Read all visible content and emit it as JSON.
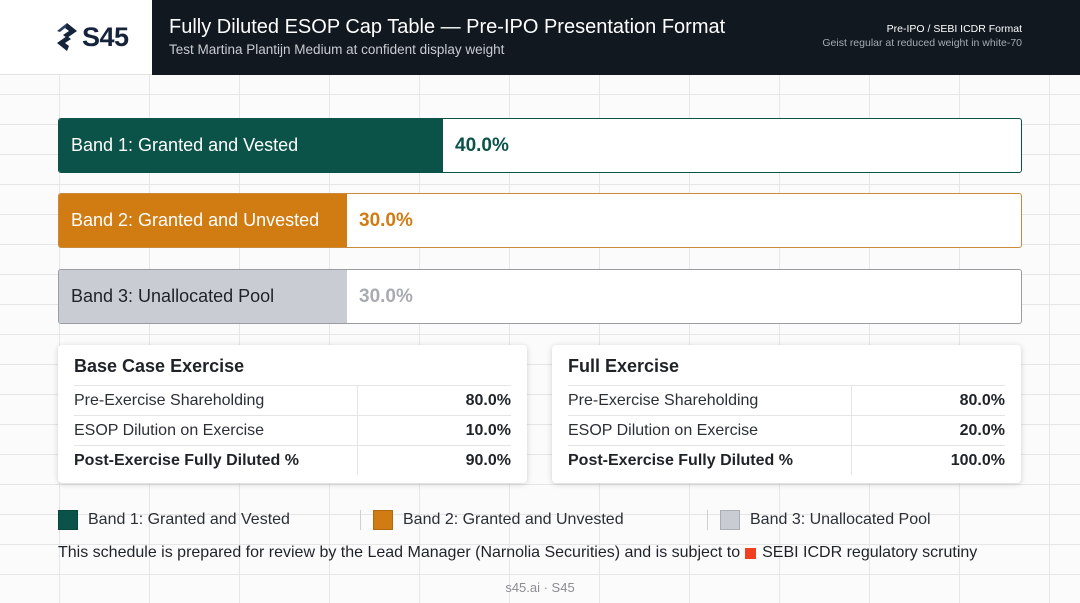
{
  "header": {
    "logo_text": "S45",
    "title": "Fully Diluted ESOP Cap Table — Pre-IPO Presentation Format",
    "subtitle": "Test Martina Plantijn Medium at confident display weight",
    "tag_main": "Pre-IPO / SEBI ICDR Format",
    "tag_sub": "Geist regular at reduced weight in white-70"
  },
  "colors": {
    "band1": "#0b5349",
    "band2": "#d17c12",
    "band3": "#c9ccd3",
    "header_bg": "#111820",
    "alert": "#f0401f"
  },
  "chart_data": {
    "type": "bar",
    "categories": [
      "Band 1: Granted and Vested",
      "Band 2: Granted and Unvested",
      "Band 3: Unallocated Pool"
    ],
    "values": [
      40.0,
      30.0,
      30.0
    ],
    "value_labels": [
      "40.0%",
      "30.0%",
      "30.0%"
    ],
    "xlim": [
      0,
      100
    ]
  },
  "cards": [
    {
      "title": "Base Case Exercise",
      "rows": [
        {
          "label": "Pre-Exercise Shareholding",
          "value": "80.0%"
        },
        {
          "label": "ESOP Dilution on Exercise",
          "value": "10.0%"
        },
        {
          "label": "Post-Exercise Fully Diluted %",
          "value": "90.0%"
        }
      ]
    },
    {
      "title": "Full Exercise",
      "rows": [
        {
          "label": "Pre-Exercise Shareholding",
          "value": "80.0%"
        },
        {
          "label": "ESOP Dilution on Exercise",
          "value": "20.0%"
        },
        {
          "label": "Post-Exercise Fully Diluted %",
          "value": "100.0%"
        }
      ]
    }
  ],
  "legend": [
    {
      "label": "Band 1: Granted and Vested"
    },
    {
      "label": "Band 2: Granted and Unvested"
    },
    {
      "label": "Band 3: Unallocated Pool"
    }
  ],
  "note": {
    "text_before": "This schedule is prepared for review by the Lead Manager (Narnolia Securities) and is subject to",
    "text_after": "SEBI ICDR regulatory scrutiny"
  },
  "footer": "s45.ai · S45"
}
